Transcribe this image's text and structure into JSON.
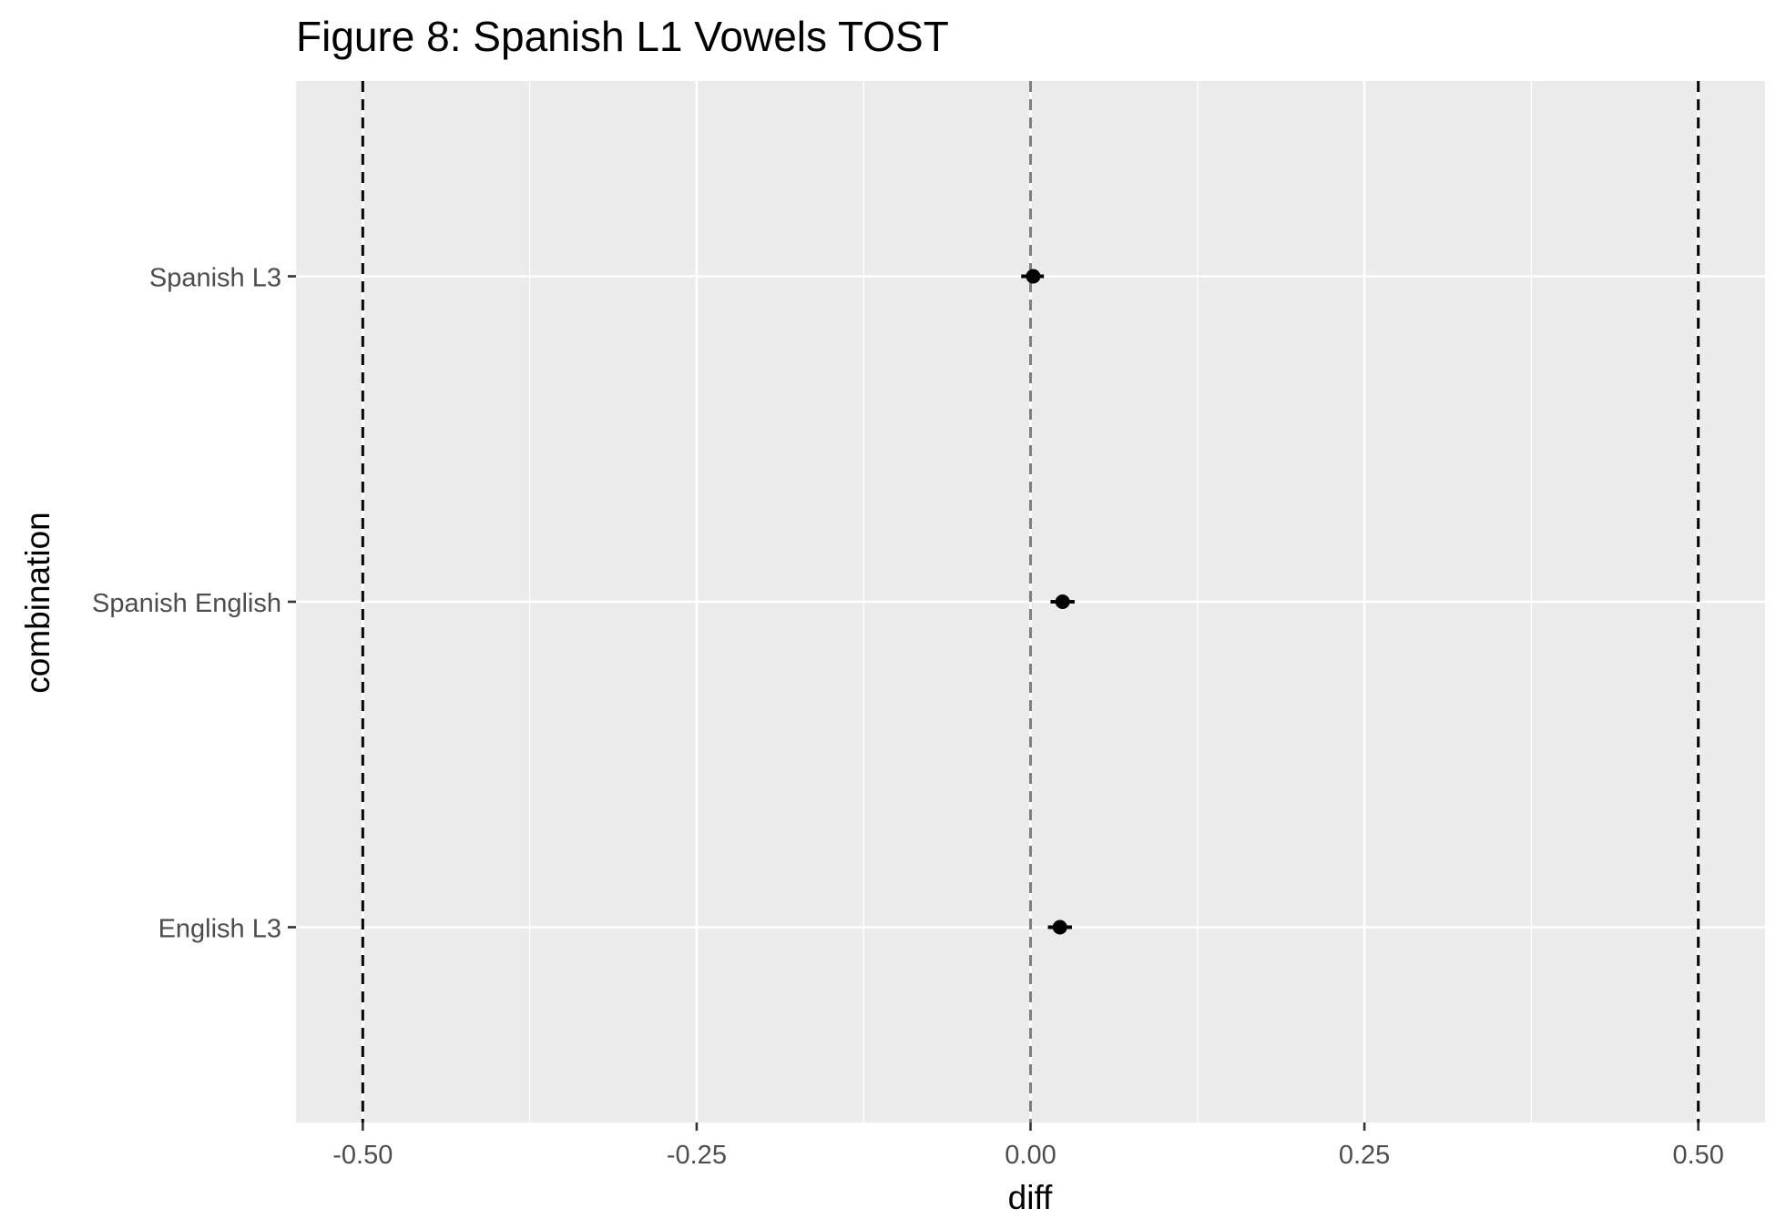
{
  "chart_data": {
    "type": "scatter",
    "title": "Figure 8: Spanish L1 Vowels TOST",
    "xlabel": "diff",
    "ylabel": "combination",
    "xlim": [
      -0.55,
      0.55
    ],
    "x_ticks": [
      -0.5,
      -0.25,
      0.0,
      0.25,
      0.5
    ],
    "x_tick_labels": [
      "-0.50",
      "-0.25",
      "0.00",
      "0.25",
      "0.50"
    ],
    "categories": [
      "English L3",
      "Spanish English",
      "Spanish L3"
    ],
    "points": [
      {
        "category": "English L3",
        "x": 0.022,
        "lower": 0.013,
        "upper": 0.031
      },
      {
        "category": "Spanish English",
        "x": 0.024,
        "lower": 0.015,
        "upper": 0.033
      },
      {
        "category": "Spanish L3",
        "x": 0.002,
        "lower": -0.007,
        "upper": 0.01
      }
    ],
    "reference_lines": {
      "equivalence_bounds": [
        -0.5,
        0.5
      ],
      "zero": 0.0
    },
    "grid": true,
    "legend": "none",
    "colors": {
      "panel_background": "#EBEBEB",
      "grid": "#FFFFFF",
      "points": "#000000",
      "bounds": "#000000",
      "zero_line": "#7F7F7F",
      "tick_label": "#4D4D4D"
    }
  }
}
